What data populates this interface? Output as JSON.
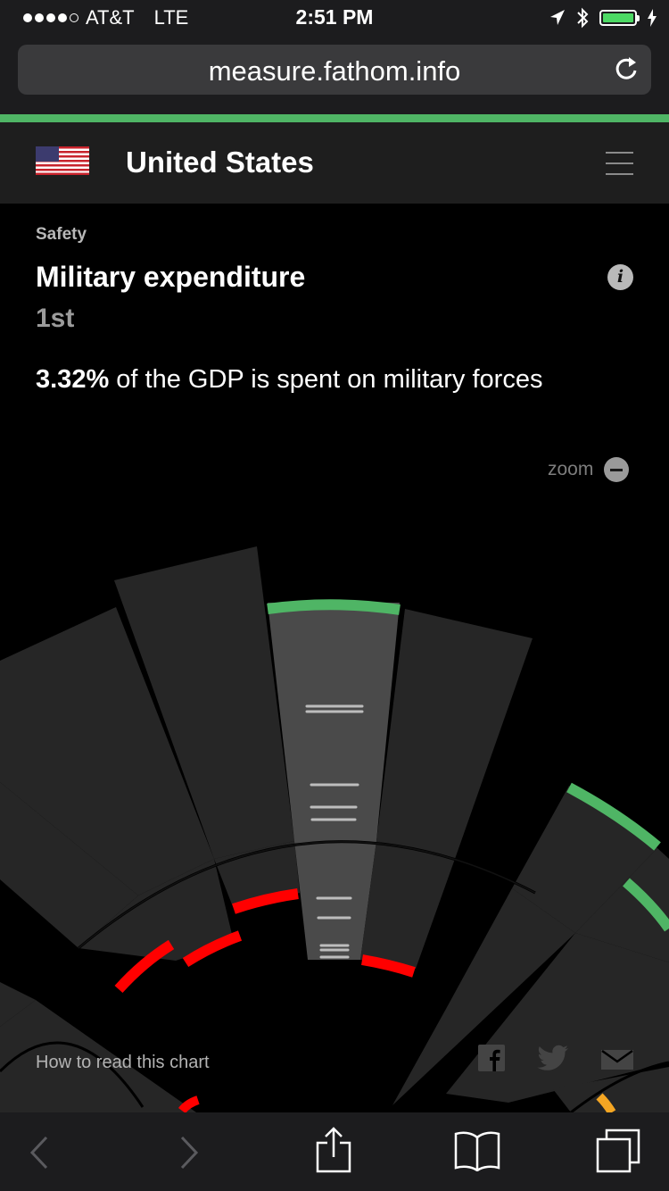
{
  "status_bar": {
    "carrier": "AT&T",
    "network": "LTE",
    "time": "2:51 PM",
    "signal_bars": 4,
    "battery_level": 1.0
  },
  "browser": {
    "url": "measure.fathom.info"
  },
  "header": {
    "country": "United States",
    "flag_icon": "us-flag-icon"
  },
  "metric": {
    "category": "Safety",
    "title": "Military expenditure",
    "rank": "1st",
    "value": "3.32%",
    "description_rest": " of the GDP is spent on military forces"
  },
  "controls": {
    "zoom_label": "zoom",
    "how_to_read": "How to read this chart"
  },
  "colors": {
    "accent_green": "#4fb565",
    "highlight_red": "#ff0000",
    "highlight_orange": "#f5a623",
    "segment_dark": "#262626",
    "segment_selected": "#4a4a4a"
  }
}
